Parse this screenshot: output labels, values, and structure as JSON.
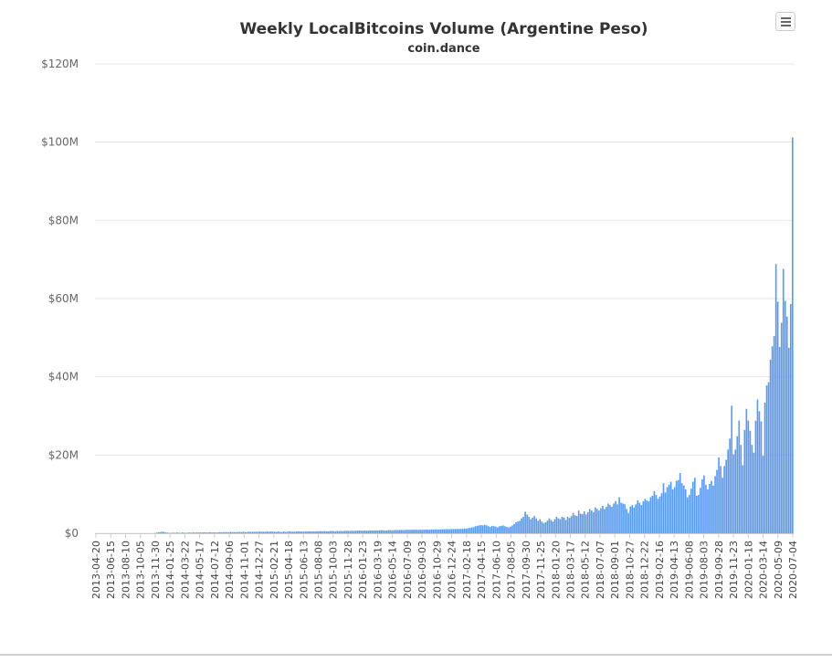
{
  "chart_data": {
    "type": "bar",
    "title": "Weekly LocalBitcoins Volume (Argentine Peso)",
    "subtitle": "coin.dance",
    "series_color": "#5b9bef",
    "grid_color": "#e6e6e6",
    "ylim": [
      0,
      120000000
    ],
    "y_ticks": [
      {
        "value": 0,
        "label": "$0"
      },
      {
        "value": 20000000,
        "label": "$20M"
      },
      {
        "value": 40000000,
        "label": "$40M"
      },
      {
        "value": 60000000,
        "label": "$60M"
      },
      {
        "value": 80000000,
        "label": "$80M"
      },
      {
        "value": 100000000,
        "label": "$100M"
      },
      {
        "value": 120000000,
        "label": "$120M"
      }
    ],
    "x_tick_labels": [
      "2013-04-20",
      "2013-06-15",
      "2013-08-10",
      "2013-10-05",
      "2013-11-30",
      "2014-01-25",
      "2014-03-22",
      "2014-05-17",
      "2014-07-12",
      "2014-09-06",
      "2014-11-01",
      "2014-12-27",
      "2015-02-21",
      "2015-04-18",
      "2015-06-13",
      "2015-08-08",
      "2015-10-03",
      "2015-11-28",
      "2016-01-23",
      "2016-03-19",
      "2016-05-14",
      "2016-07-09",
      "2016-09-03",
      "2016-10-29",
      "2016-12-24",
      "2017-02-18",
      "2017-04-15",
      "2017-06-10",
      "2017-08-05",
      "2017-09-30",
      "2017-11-25",
      "2018-01-20",
      "2018-03-17",
      "2018-05-12",
      "2018-07-07",
      "2018-09-01",
      "2018-10-27",
      "2018-12-22",
      "2019-02-16",
      "2019-04-13",
      "2019-06-08",
      "2019-08-03",
      "2019-09-28",
      "2019-11-23",
      "2020-01-18",
      "2020-03-14",
      "2020-05-09",
      "2020-07-04"
    ],
    "weeks_per_tick": 8,
    "values_millions": [
      0,
      0,
      0,
      0,
      0,
      0,
      0,
      0,
      0,
      0,
      0,
      0,
      0,
      0,
      0,
      0,
      0,
      0,
      0,
      0,
      0,
      0,
      0,
      0,
      0,
      0,
      0,
      0,
      0,
      0,
      0,
      0,
      0.05,
      0.15,
      0.25,
      0.3,
      0.4,
      0.35,
      0.2,
      0.15,
      0.1,
      0.1,
      0.15,
      0.1,
      0.2,
      0.15,
      0.1,
      0.2,
      0.15,
      0.1,
      0.15,
      0.2,
      0.15,
      0.2,
      0.15,
      0.2,
      0.2,
      0.2,
      0.2,
      0.25,
      0.2,
      0.2,
      0.3,
      0.2,
      0.25,
      0.2,
      0.2,
      0.3,
      0.25,
      0.25,
      0.3,
      0.3,
      0.25,
      0.35,
      0.3,
      0.3,
      0.3,
      0.3,
      0.35,
      0.3,
      0.4,
      0.3,
      0.3,
      0.4,
      0.35,
      0.35,
      0.35,
      0.4,
      0.35,
      0.45,
      0.4,
      0.4,
      0.35,
      0.5,
      0.4,
      0.45,
      0.4,
      0.4,
      0.35,
      0.45,
      0.35,
      0.3,
      0.45,
      0.35,
      0.4,
      0.5,
      0.4,
      0.4,
      0.4,
      0.45,
      0.5,
      0.45,
      0.45,
      0.4,
      0.5,
      0.45,
      0.5,
      0.45,
      0.5,
      0.45,
      0.5,
      0.5,
      0.55,
      0.5,
      0.55,
      0.5,
      0.5,
      0.55,
      0.6,
      0.55,
      0.5,
      0.6,
      0.55,
      0.6,
      0.55,
      0.6,
      0.65,
      0.6,
      0.6,
      0.65,
      0.6,
      0.65,
      0.65,
      0.7,
      0.65,
      0.65,
      0.7,
      0.65,
      0.65,
      0.75,
      0.7,
      0.7,
      0.75,
      0.7,
      0.75,
      0.8,
      0.75,
      0.7,
      0.75,
      0.8,
      0.8,
      0.75,
      0.8,
      0.85,
      0.8,
      0.85,
      0.85,
      0.8,
      0.85,
      0.9,
      0.85,
      0.9,
      0.9,
      0.9,
      0.9,
      0.85,
      0.95,
      0.9,
      0.9,
      0.95,
      0.95,
      0.9,
      1.0,
      0.95,
      1.0,
      1.0,
      0.95,
      1.0,
      1.05,
      1.0,
      1.05,
      1.05,
      1.0,
      1.1,
      1.05,
      1.1,
      1.1,
      1.1,
      1.15,
      1.1,
      1.2,
      1.2,
      1.3,
      1.4,
      1.5,
      1.6,
      1.8,
      1.9,
      2.0,
      2.1,
      2.0,
      2.2,
      2.0,
      1.8,
      1.6,
      1.9,
      1.8,
      1.7,
      1.5,
      1.8,
      1.9,
      2.0,
      1.8,
      1.6,
      1.5,
      1.7,
      2.0,
      2.4,
      2.8,
      3.0,
      3.2,
      3.8,
      4.2,
      5.5,
      4.8,
      4.2,
      3.6,
      4.0,
      4.4,
      3.8,
      3.2,
      3.6,
      3.0,
      2.6,
      2.8,
      3.2,
      3.8,
      3.4,
      3.0,
      3.6,
      4.2,
      3.8,
      3.6,
      4.2,
      4.0,
      3.4,
      4.2,
      3.9,
      4.4,
      5.2,
      4.6,
      4.4,
      5.8,
      5.0,
      4.9,
      5.6,
      4.8,
      5.4,
      6.2,
      5.8,
      5.4,
      6.6,
      6.2,
      5.8,
      6.4,
      7.0,
      6.2,
      6.8,
      7.6,
      7.2,
      6.8,
      7.6,
      8.2,
      7.4,
      9.2,
      7.8,
      7.6,
      7.4,
      6.2,
      5.2,
      6.8,
      7.2,
      6.6,
      7.4,
      8.4,
      7.8,
      7.2,
      8.2,
      8.8,
      8.4,
      8.2,
      9.2,
      9.6,
      10.8,
      9.8,
      8.8,
      9.4,
      10.2,
      12.8,
      10.4,
      11.8,
      12.4,
      13.2,
      11.2,
      11.8,
      13.4,
      13.6,
      15.4,
      12.8,
      12.2,
      11.2,
      9.2,
      9.8,
      11.4,
      13.2,
      14.2,
      9.6,
      9.8,
      11.6,
      13.8,
      14.8,
      12.4,
      11.2,
      12.6,
      13.4,
      12.2,
      14.6,
      16.2,
      19.4,
      17.2,
      14.2,
      17.2,
      18.8,
      21.4,
      24.2,
      32.6,
      20.2,
      21.4,
      24.8,
      28.8,
      22.6,
      17.4,
      26.4,
      31.8,
      28.8,
      26.2,
      22.6,
      20.6,
      28.8,
      34.2,
      31.2,
      28.6,
      19.8,
      33.4,
      37.8,
      38.6,
      44.4,
      47.8,
      50.4,
      68.8,
      59.2,
      47.6,
      53.8,
      67.6,
      59.4,
      55.4,
      47.4,
      58.6,
      101.2
    ]
  }
}
